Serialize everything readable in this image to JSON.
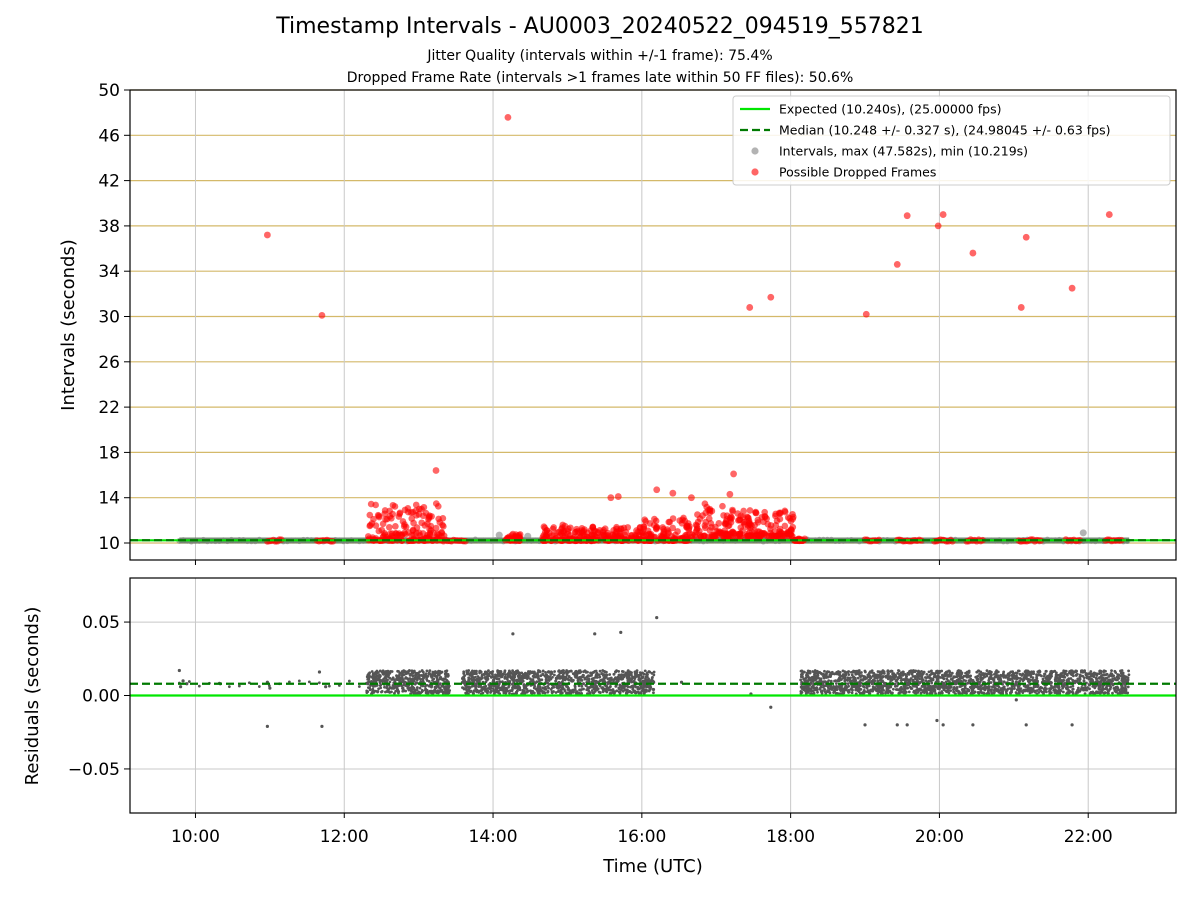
{
  "title": "Timestamp Intervals - AU0003_20240522_094519_557821",
  "subtitle_1": "Jitter Quality (intervals within +/-1 frame): 75.4%",
  "subtitle_2": "Dropped Frame Rate (intervals >1 frames late within 50 FF files): 50.6%",
  "colors": {
    "expected": "#00e600",
    "median": "#007a00",
    "interval": "#808080",
    "dropped": "#ff0000",
    "gold_grid": "#d4b96a",
    "grid": "#c8c8c8",
    "residual": "#555555"
  },
  "chart_data": [
    {
      "type": "scatter",
      "name": "intervals",
      "ylabel": "Intervals (seconds)",
      "ylim": [
        8.5,
        50
      ],
      "xlim_hours": [
        9.12,
        23.18
      ],
      "yticks": [
        10,
        14,
        18,
        22,
        26,
        30,
        34,
        38,
        42,
        46,
        50
      ],
      "grid": "horizontal gold lines + vertical gray lines",
      "legend_position": "top-right",
      "legend": [
        "Expected (10.240s), (25.00000 fps)",
        "Median (10.248 +/- 0.327 s), (24.98045 +/- 0.63 fps)",
        "Intervals, max (47.582s), min (10.219s)",
        "Possible Dropped Frames"
      ],
      "expected_value": 10.24,
      "median_value": 10.248,
      "baseline_interval_range": [
        "09:47",
        "22:33"
      ],
      "dropped_outliers": [
        {
          "time": "10:58",
          "value": 37.2
        },
        {
          "time": "11:42",
          "value": 30.1
        },
        {
          "time": "13:14",
          "value": 16.4
        },
        {
          "time": "14:12",
          "value": 47.58
        },
        {
          "time": "15:35",
          "value": 14.0
        },
        {
          "time": "15:41",
          "value": 14.1
        },
        {
          "time": "16:12",
          "value": 14.7
        },
        {
          "time": "16:25",
          "value": 14.4
        },
        {
          "time": "16:40",
          "value": 14.0
        },
        {
          "time": "17:11",
          "value": 14.3
        },
        {
          "time": "17:14",
          "value": 16.1
        },
        {
          "time": "17:27",
          "value": 30.8
        },
        {
          "time": "17:44",
          "value": 31.7
        },
        {
          "time": "19:01",
          "value": 30.2
        },
        {
          "time": "19:26",
          "value": 34.6
        },
        {
          "time": "19:34",
          "value": 38.9
        },
        {
          "time": "19:59",
          "value": 38.0
        },
        {
          "time": "20:03",
          "value": 39.0
        },
        {
          "time": "20:27",
          "value": 35.6
        },
        {
          "time": "21:06",
          "value": 30.8
        },
        {
          "time": "21:10",
          "value": 37.0
        },
        {
          "time": "21:47",
          "value": 32.5
        },
        {
          "time": "22:17",
          "value": 39.0
        }
      ],
      "dropped_clusters": [
        {
          "start": "12:19",
          "end": "13:21",
          "low": 10.2,
          "high": 13.5
        },
        {
          "start": "14:10",
          "end": "14:22",
          "low": 10.2,
          "high": 10.8
        },
        {
          "start": "14:40",
          "end": "15:10",
          "low": 10.2,
          "high": 11.7
        },
        {
          "start": "15:10",
          "end": "16:00",
          "low": 10.2,
          "high": 11.5
        },
        {
          "start": "16:00",
          "end": "16:40",
          "low": 10.2,
          "high": 12.3
        },
        {
          "start": "16:40",
          "end": "17:20",
          "low": 10.5,
          "high": 13.5
        },
        {
          "start": "17:20",
          "end": "18:03",
          "low": 10.6,
          "high": 12.9
        },
        {
          "start": "18:03",
          "end": "18:12",
          "low": 10.2,
          "high": 10.4
        }
      ],
      "dropped_baseline_bursts": [
        [
          "10:58",
          "11:10"
        ],
        [
          "11:38",
          "11:52"
        ],
        [
          "13:20",
          "13:38"
        ],
        [
          "19:00",
          "19:12"
        ],
        [
          "19:26",
          "19:46"
        ],
        [
          "19:56",
          "20:12"
        ],
        [
          "20:22",
          "20:36"
        ],
        [
          "21:04",
          "21:22"
        ],
        [
          "21:42",
          "21:54"
        ],
        [
          "22:14",
          "22:28"
        ]
      ],
      "gray_outliers": [
        {
          "time": "14:05",
          "value": 10.7
        },
        {
          "time": "14:28",
          "value": 10.6
        },
        {
          "time": "21:56",
          "value": 10.9
        }
      ]
    },
    {
      "type": "scatter",
      "name": "residuals",
      "xlabel": "Time (UTC)",
      "ylabel": "Residuals (seconds)",
      "ylim": [
        -0.08,
        0.08
      ],
      "xlim_hours": [
        9.12,
        23.18
      ],
      "yticks": [
        "0.05",
        "0.00",
        "−0.05"
      ],
      "ytick_values": [
        0.05,
        0.0,
        -0.05
      ],
      "xticks": [
        "10:00",
        "12:00",
        "14:00",
        "16:00",
        "18:00",
        "20:00",
        "22:00"
      ],
      "expected_residual": 0.0,
      "median_residual": 0.008,
      "dense_bands": [
        {
          "start": "12:18",
          "end": "13:25",
          "low": 0.001,
          "high": 0.017
        },
        {
          "start": "13:35",
          "end": "16:10",
          "low": 0.001,
          "high": 0.017
        },
        {
          "start": "18:08",
          "end": "22:33",
          "low": 0.001,
          "high": 0.017
        }
      ],
      "sparse_points": [
        {
          "time": "09:47",
          "value": 0.017
        },
        {
          "time": "09:48",
          "value": 0.006
        },
        {
          "time": "09:50",
          "value": 0.01
        },
        {
          "time": "09:53",
          "value": 0.008
        },
        {
          "time": "10:20",
          "value": 0.008
        },
        {
          "time": "10:58",
          "value": -0.021
        },
        {
          "time": "10:58",
          "value": 0.009
        },
        {
          "time": "11:00",
          "value": 0.005
        },
        {
          "time": "11:40",
          "value": 0.016
        },
        {
          "time": "11:42",
          "value": -0.021
        },
        {
          "time": "11:45",
          "value": 0.006
        },
        {
          "time": "14:16",
          "value": 0.042
        },
        {
          "time": "15:22",
          "value": 0.042
        },
        {
          "time": "15:43",
          "value": 0.043
        },
        {
          "time": "16:12",
          "value": 0.053
        },
        {
          "time": "16:32",
          "value": 0.009
        },
        {
          "time": "17:28",
          "value": 0.001
        },
        {
          "time": "17:44",
          "value": -0.008
        },
        {
          "time": "19:00",
          "value": -0.02
        },
        {
          "time": "19:26",
          "value": -0.02
        },
        {
          "time": "19:34",
          "value": -0.02
        },
        {
          "time": "19:58",
          "value": -0.017
        },
        {
          "time": "20:03",
          "value": -0.02
        },
        {
          "time": "20:27",
          "value": -0.02
        },
        {
          "time": "21:02",
          "value": -0.003
        },
        {
          "time": "21:10",
          "value": -0.02
        },
        {
          "time": "21:47",
          "value": -0.02
        }
      ]
    }
  ]
}
